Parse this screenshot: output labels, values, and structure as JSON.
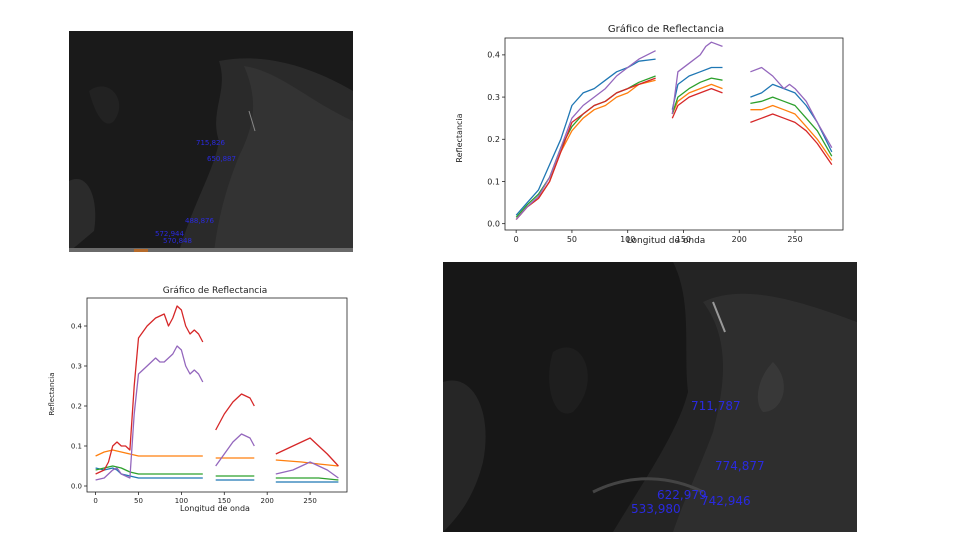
{
  "colors": {
    "blue": "#1f77b4",
    "orange": "#ff7f0e",
    "green": "#2ca02c",
    "red": "#d62728",
    "purple": "#9467bd",
    "point_label": "#2a2ae0"
  },
  "satellite_small": {
    "point_labels": [
      "715,826",
      "650,887",
      "488,876",
      "572,944",
      "570,848"
    ]
  },
  "satellite_large": {
    "point_labels": [
      "711,787",
      "774,877",
      "622,979",
      "742,946",
      "533,980"
    ]
  },
  "chart_data": [
    {
      "type": "line",
      "title": "Gráfico de Reflectancia",
      "xlabel": "Longitud de onda",
      "ylabel": "Reflectancia",
      "xlim": [
        -10,
        293
      ],
      "ylim": [
        -0.015,
        0.44
      ],
      "xticks": [
        0,
        50,
        100,
        150,
        200,
        250
      ],
      "yticks": [
        0.0,
        0.1,
        0.2,
        0.3,
        0.4
      ],
      "segments": [
        [
          0,
          125
        ],
        [
          140,
          185
        ],
        [
          210,
          283
        ]
      ],
      "series": [
        {
          "color": "blue",
          "values": [
            [
              0,
              0.02
            ],
            [
              10,
              0.05
            ],
            [
              20,
              0.08
            ],
            [
              30,
              0.14
            ],
            [
              40,
              0.2
            ],
            [
              45,
              0.24
            ],
            [
              50,
              0.28
            ],
            [
              60,
              0.31
            ],
            [
              70,
              0.32
            ],
            [
              80,
              0.34
            ],
            [
              90,
              0.36
            ],
            [
              100,
              0.37
            ],
            [
              110,
              0.385
            ],
            [
              125,
              0.39
            ],
            [
              140,
              0.27
            ],
            [
              145,
              0.33
            ],
            [
              155,
              0.35
            ],
            [
              165,
              0.36
            ],
            [
              175,
              0.37
            ],
            [
              185,
              0.37
            ],
            [
              210,
              0.3
            ],
            [
              220,
              0.31
            ],
            [
              230,
              0.33
            ],
            [
              240,
              0.32
            ],
            [
              250,
              0.31
            ],
            [
              260,
              0.28
            ],
            [
              270,
              0.24
            ],
            [
              283,
              0.17
            ]
          ]
        },
        {
          "color": "orange",
          "values": [
            [
              0,
              0.01
            ],
            [
              10,
              0.04
            ],
            [
              20,
              0.06
            ],
            [
              30,
              0.1
            ],
            [
              40,
              0.17
            ],
            [
              50,
              0.22
            ],
            [
              60,
              0.25
            ],
            [
              70,
              0.27
            ],
            [
              80,
              0.28
            ],
            [
              90,
              0.3
            ],
            [
              100,
              0.31
            ],
            [
              110,
              0.33
            ],
            [
              125,
              0.34
            ],
            [
              140,
              0.26
            ],
            [
              145,
              0.29
            ],
            [
              155,
              0.31
            ],
            [
              165,
              0.32
            ],
            [
              175,
              0.33
            ],
            [
              185,
              0.32
            ],
            [
              210,
              0.27
            ],
            [
              220,
              0.27
            ],
            [
              230,
              0.28
            ],
            [
              240,
              0.27
            ],
            [
              250,
              0.26
            ],
            [
              260,
              0.23
            ],
            [
              270,
              0.2
            ],
            [
              283,
              0.15
            ]
          ]
        },
        {
          "color": "green",
          "values": [
            [
              0,
              0.015
            ],
            [
              10,
              0.045
            ],
            [
              20,
              0.07
            ],
            [
              30,
              0.11
            ],
            [
              40,
              0.18
            ],
            [
              50,
              0.23
            ],
            [
              60,
              0.26
            ],
            [
              70,
              0.28
            ],
            [
              80,
              0.29
            ],
            [
              90,
              0.31
            ],
            [
              100,
              0.32
            ],
            [
              110,
              0.335
            ],
            [
              125,
              0.35
            ],
            [
              140,
              0.26
            ],
            [
              145,
              0.3
            ],
            [
              155,
              0.32
            ],
            [
              165,
              0.335
            ],
            [
              175,
              0.345
            ],
            [
              185,
              0.34
            ],
            [
              210,
              0.285
            ],
            [
              220,
              0.29
            ],
            [
              230,
              0.3
            ],
            [
              240,
              0.29
            ],
            [
              250,
              0.28
            ],
            [
              260,
              0.25
            ],
            [
              270,
              0.22
            ],
            [
              283,
              0.16
            ]
          ]
        },
        {
          "color": "red",
          "values": [
            [
              0,
              0.01
            ],
            [
              10,
              0.04
            ],
            [
              20,
              0.06
            ],
            [
              30,
              0.1
            ],
            [
              40,
              0.17
            ],
            [
              50,
              0.24
            ],
            [
              60,
              0.26
            ],
            [
              70,
              0.28
            ],
            [
              80,
              0.29
            ],
            [
              90,
              0.31
            ],
            [
              100,
              0.32
            ],
            [
              110,
              0.33
            ],
            [
              125,
              0.345
            ],
            [
              140,
              0.25
            ],
            [
              145,
              0.28
            ],
            [
              155,
              0.3
            ],
            [
              165,
              0.31
            ],
            [
              175,
              0.32
            ],
            [
              185,
              0.31
            ],
            [
              210,
              0.24
            ],
            [
              220,
              0.25
            ],
            [
              230,
              0.26
            ],
            [
              240,
              0.25
            ],
            [
              250,
              0.24
            ],
            [
              260,
              0.22
            ],
            [
              270,
              0.19
            ],
            [
              283,
              0.14
            ]
          ]
        },
        {
          "color": "purple",
          "values": [
            [
              0,
              0.01
            ],
            [
              10,
              0.04
            ],
            [
              20,
              0.065
            ],
            [
              30,
              0.11
            ],
            [
              40,
              0.18
            ],
            [
              50,
              0.25
            ],
            [
              60,
              0.28
            ],
            [
              70,
              0.3
            ],
            [
              80,
              0.32
            ],
            [
              90,
              0.35
            ],
            [
              100,
              0.37
            ],
            [
              110,
              0.39
            ],
            [
              125,
              0.41
            ],
            [
              140,
              0.26
            ],
            [
              145,
              0.36
            ],
            [
              155,
              0.38
            ],
            [
              165,
              0.4
            ],
            [
              170,
              0.42
            ],
            [
              175,
              0.43
            ],
            [
              185,
              0.42
            ],
            [
              210,
              0.36
            ],
            [
              220,
              0.37
            ],
            [
              230,
              0.35
            ],
            [
              240,
              0.32
            ],
            [
              245,
              0.33
            ],
            [
              250,
              0.32
            ],
            [
              260,
              0.29
            ],
            [
              270,
              0.24
            ],
            [
              283,
              0.18
            ]
          ]
        }
      ]
    },
    {
      "type": "line",
      "title": "Gráfico de Reflectancia",
      "xlabel": "Longitud de onda",
      "ylabel": "Reflectancia",
      "xlim": [
        -10,
        293
      ],
      "ylim": [
        -0.015,
        0.47
      ],
      "xticks": [
        0,
        50,
        100,
        150,
        200,
        250
      ],
      "yticks": [
        0.0,
        0.1,
        0.2,
        0.3,
        0.4
      ],
      "segments": [
        [
          0,
          125
        ],
        [
          140,
          185
        ],
        [
          210,
          283
        ]
      ],
      "series": [
        {
          "color": "blue",
          "values": [
            [
              0,
              0.045
            ],
            [
              10,
              0.04
            ],
            [
              20,
              0.045
            ],
            [
              25,
              0.04
            ],
            [
              30,
              0.03
            ],
            [
              40,
              0.025
            ],
            [
              50,
              0.02
            ],
            [
              60,
              0.02
            ],
            [
              80,
              0.02
            ],
            [
              100,
              0.02
            ],
            [
              125,
              0.02
            ],
            [
              140,
              0.015
            ],
            [
              150,
              0.015
            ],
            [
              170,
              0.015
            ],
            [
              185,
              0.015
            ],
            [
              210,
              0.01
            ],
            [
              230,
              0.01
            ],
            [
              250,
              0.01
            ],
            [
              283,
              0.01
            ]
          ]
        },
        {
          "color": "orange",
          "values": [
            [
              0,
              0.075
            ],
            [
              10,
              0.085
            ],
            [
              20,
              0.09
            ],
            [
              30,
              0.085
            ],
            [
              40,
              0.08
            ],
            [
              50,
              0.075
            ],
            [
              70,
              0.075
            ],
            [
              90,
              0.075
            ],
            [
              110,
              0.075
            ],
            [
              125,
              0.075
            ],
            [
              140,
              0.07
            ],
            [
              160,
              0.07
            ],
            [
              185,
              0.07
            ],
            [
              210,
              0.065
            ],
            [
              240,
              0.06
            ],
            [
              260,
              0.055
            ],
            [
              283,
              0.05
            ]
          ]
        },
        {
          "color": "green",
          "values": [
            [
              0,
              0.04
            ],
            [
              10,
              0.045
            ],
            [
              20,
              0.05
            ],
            [
              30,
              0.045
            ],
            [
              40,
              0.035
            ],
            [
              50,
              0.03
            ],
            [
              70,
              0.03
            ],
            [
              90,
              0.03
            ],
            [
              110,
              0.03
            ],
            [
              125,
              0.03
            ],
            [
              140,
              0.025
            ],
            [
              160,
              0.025
            ],
            [
              185,
              0.025
            ],
            [
              210,
              0.02
            ],
            [
              240,
              0.02
            ],
            [
              260,
              0.02
            ],
            [
              283,
              0.015
            ]
          ]
        },
        {
          "color": "red",
          "values": [
            [
              0,
              0.03
            ],
            [
              10,
              0.04
            ],
            [
              15,
              0.06
            ],
            [
              20,
              0.1
            ],
            [
              25,
              0.11
            ],
            [
              30,
              0.1
            ],
            [
              35,
              0.1
            ],
            [
              40,
              0.09
            ],
            [
              45,
              0.25
            ],
            [
              50,
              0.37
            ],
            [
              60,
              0.4
            ],
            [
              70,
              0.42
            ],
            [
              80,
              0.43
            ],
            [
              85,
              0.4
            ],
            [
              90,
              0.42
            ],
            [
              95,
              0.45
            ],
            [
              100,
              0.44
            ],
            [
              105,
              0.4
            ],
            [
              110,
              0.38
            ],
            [
              115,
              0.39
            ],
            [
              120,
              0.38
            ],
            [
              125,
              0.36
            ],
            [
              140,
              0.14
            ],
            [
              150,
              0.18
            ],
            [
              160,
              0.21
            ],
            [
              170,
              0.23
            ],
            [
              180,
              0.22
            ],
            [
              185,
              0.2
            ],
            [
              210,
              0.08
            ],
            [
              220,
              0.09
            ],
            [
              230,
              0.1
            ],
            [
              240,
              0.11
            ],
            [
              250,
              0.12
            ],
            [
              260,
              0.1
            ],
            [
              270,
              0.08
            ],
            [
              283,
              0.05
            ]
          ]
        },
        {
          "color": "purple",
          "values": [
            [
              0,
              0.015
            ],
            [
              10,
              0.02
            ],
            [
              20,
              0.04
            ],
            [
              25,
              0.045
            ],
            [
              30,
              0.03
            ],
            [
              40,
              0.02
            ],
            [
              45,
              0.18
            ],
            [
              50,
              0.28
            ],
            [
              60,
              0.3
            ],
            [
              70,
              0.32
            ],
            [
              75,
              0.31
            ],
            [
              80,
              0.31
            ],
            [
              90,
              0.33
            ],
            [
              95,
              0.35
            ],
            [
              100,
              0.34
            ],
            [
              105,
              0.3
            ],
            [
              110,
              0.28
            ],
            [
              115,
              0.29
            ],
            [
              120,
              0.28
            ],
            [
              125,
              0.26
            ],
            [
              140,
              0.05
            ],
            [
              150,
              0.08
            ],
            [
              160,
              0.11
            ],
            [
              170,
              0.13
            ],
            [
              180,
              0.12
            ],
            [
              185,
              0.1
            ],
            [
              210,
              0.03
            ],
            [
              220,
              0.035
            ],
            [
              230,
              0.04
            ],
            [
              240,
              0.05
            ],
            [
              250,
              0.06
            ],
            [
              260,
              0.05
            ],
            [
              270,
              0.04
            ],
            [
              283,
              0.02
            ]
          ]
        }
      ]
    }
  ]
}
